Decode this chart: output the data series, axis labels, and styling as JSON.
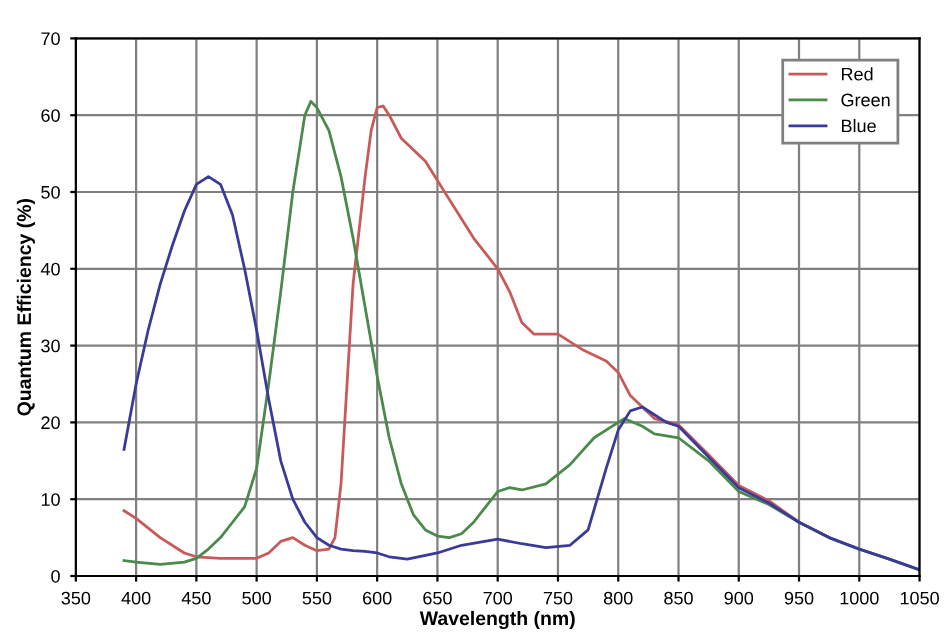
{
  "chart_data": {
    "type": "line",
    "xlabel": "Wavelength (nm)",
    "ylabel": "Quantum Efficiency (%)",
    "xlim": [
      350,
      1050
    ],
    "ylim": [
      0,
      70
    ],
    "xticks": [
      350,
      400,
      450,
      500,
      550,
      600,
      650,
      700,
      750,
      800,
      850,
      900,
      950,
      1000,
      1050
    ],
    "yticks": [
      0,
      10,
      20,
      30,
      40,
      50,
      60,
      70
    ],
    "grid": true,
    "legend": "top right",
    "marker": "none",
    "line_style": "solid",
    "series": [
      {
        "name": "Red",
        "color": "#c85a5a",
        "x": [
          390,
          400,
          420,
          440,
          450,
          470,
          490,
          500,
          510,
          520,
          530,
          540,
          550,
          560,
          565,
          570,
          575,
          580,
          590,
          595,
          600,
          605,
          610,
          620,
          640,
          660,
          680,
          700,
          710,
          720,
          730,
          750,
          770,
          790,
          800,
          810,
          830,
          850,
          875,
          900,
          925,
          950,
          975
        ],
        "values": [
          8.5,
          7.5,
          5,
          3,
          2.5,
          2.3,
          2.3,
          2.3,
          3,
          4.5,
          5,
          4,
          3.3,
          3.5,
          5,
          12,
          25,
          38,
          52,
          58,
          61,
          61.2,
          60,
          57,
          54,
          49,
          44,
          40,
          37,
          33,
          31.5,
          31.5,
          29.5,
          28,
          26.5,
          23.5,
          20.5,
          19.7,
          15.8,
          11.8,
          9.8,
          7,
          5
        ]
      },
      {
        "name": "Green",
        "color": "#4a8a4a",
        "x": [
          390,
          400,
          420,
          440,
          450,
          460,
          470,
          480,
          490,
          500,
          510,
          520,
          530,
          540,
          545,
          550,
          560,
          570,
          580,
          590,
          600,
          610,
          620,
          630,
          640,
          650,
          660,
          670,
          680,
          690,
          700,
          710,
          720,
          740,
          760,
          780,
          800,
          805,
          820,
          830,
          850,
          875,
          900,
          925,
          950,
          975,
          1000,
          1025,
          1050
        ],
        "values": [
          2,
          1.8,
          1.5,
          1.8,
          2.3,
          3.5,
          5,
          7,
          9,
          14,
          25,
          37,
          50,
          60,
          61.8,
          61,
          58,
          52,
          44,
          35,
          26,
          18,
          12,
          8,
          6,
          5.2,
          5,
          5.5,
          7,
          9,
          11,
          11.5,
          11.2,
          12,
          14.5,
          18,
          20,
          20.5,
          19.5,
          18.5,
          18,
          15,
          11,
          9.3,
          7,
          5,
          3.5,
          2.2,
          0.8
        ]
      },
      {
        "name": "Blue",
        "color": "#3a3a9a",
        "x": [
          390,
          400,
          410,
          420,
          430,
          440,
          450,
          460,
          470,
          480,
          490,
          500,
          510,
          520,
          530,
          540,
          550,
          560,
          570,
          580,
          590,
          600,
          610,
          625,
          650,
          670,
          700,
          720,
          740,
          760,
          775,
          790,
          800,
          810,
          820,
          830,
          840,
          850,
          875,
          900,
          925,
          950,
          975,
          1000,
          1025,
          1050
        ],
        "values": [
          16.5,
          25,
          32,
          38,
          43,
          47.5,
          51,
          52,
          51,
          47,
          40,
          32,
          23,
          15,
          10,
          7,
          5,
          4,
          3.5,
          3.3,
          3.2,
          3,
          2.5,
          2.2,
          3,
          4,
          4.8,
          4.2,
          3.7,
          4,
          6,
          14,
          19,
          21.5,
          22,
          21,
          20,
          19.5,
          15.5,
          11.5,
          9.5,
          7,
          5,
          3.5,
          2.2,
          0.8
        ]
      }
    ]
  }
}
